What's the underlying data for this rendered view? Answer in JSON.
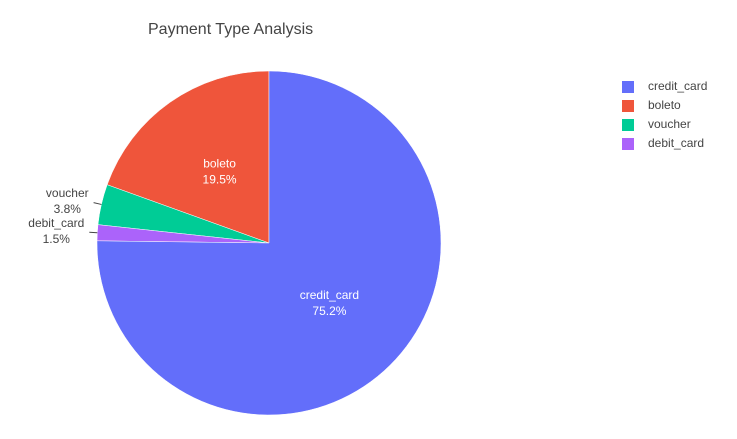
{
  "chart_data": {
    "type": "pie",
    "title": "Payment Type Analysis",
    "labels": [
      "credit_card",
      "boleto",
      "voucher",
      "debit_card"
    ],
    "values": [
      75.2,
      19.5,
      3.8,
      1.5
    ],
    "value_labels": [
      "75.2%",
      "19.5%",
      "3.8%",
      "1.5%"
    ],
    "colors": [
      "#636efa",
      "#ef553b",
      "#00cc96",
      "#ab63fa"
    ],
    "legend": "top-right"
  }
}
